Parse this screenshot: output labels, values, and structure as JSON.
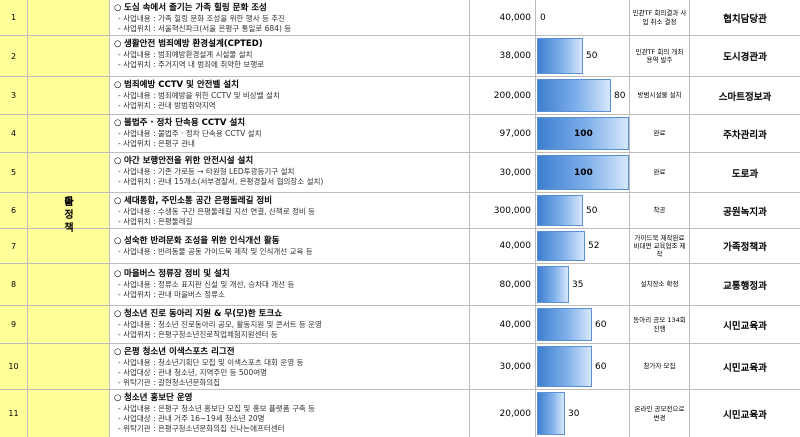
{
  "category": {
    "chars": [
      "마",
      "을",
      "정",
      "책"
    ]
  },
  "rows": [
    {
      "no": "1",
      "title": "도심 속에서 즐기는 가족 힐링 문화 조성",
      "lines": [
        "- 사업내용 : 가족 힐링 문화 조성을 위한 행사 등 추진",
        "- 사업위치 : 서울혁신파크(서울 은평구 통일로 684) 등"
      ],
      "budget": "40,000",
      "progress": 0,
      "progress_label": "0",
      "status": "민관TF 회의결과 사업 취소 결정",
      "dept": "협치담당관"
    },
    {
      "no": "2",
      "title": "생활안전 범죄예방 환경설계(CPTED)",
      "lines": [
        "- 사업내용 : 범죄예방환경설계 시설물 설치",
        "- 사업위치 : 주거지역 내 범죄에 취약한 보행로"
      ],
      "budget": "38,000",
      "progress": 50,
      "progress_label": "50",
      "status": "민관TF 회의 개최 용역 발주",
      "dept": "도시경관과"
    },
    {
      "no": "3",
      "title": "범죄예방 CCTV 및 안전벨 설치",
      "lines": [
        "- 사업내용 : 범죄예방을 위한 CCTV 및 비상벨 설치",
        "- 사업위치 : 관내 방범취약지역"
      ],
      "budget": "200,000",
      "progress": 80,
      "progress_label": "80",
      "status": "방범시설물 설치",
      "dept": "스마트정보과"
    },
    {
      "no": "4",
      "title": "불법주 · 정차 단속용 CCTV 설치",
      "lines": [
        "- 사업내용 : 불법주 · 정차 단속용 CCTV 설치",
        "- 사업위치 : 은평구 관내"
      ],
      "budget": "97,000",
      "progress": 100,
      "progress_label": "100",
      "status": "완료",
      "dept": "주차관리과"
    },
    {
      "no": "5",
      "title": "야간 보행안전을 위한 안전시설 설치",
      "lines": [
        "- 사업내용 : 기존 가로등 → 타원형 LED투광등기구 설치",
        "- 사업위치 : 관내 15개소(서부경찰서, 은평경찰서 협의장소 설치)"
      ],
      "budget": "30,000",
      "progress": 100,
      "progress_label": "100",
      "status": "완료",
      "dept": "도로과"
    },
    {
      "no": "6",
      "title": "세대통합, 주민소통 공간 은평둘레길 정비",
      "lines": [
        "- 사업내용 : 수생동 구간 은평둘레길 지선 연결, 산책로 정비 등",
        "- 사업위치 : 은평둘레길"
      ],
      "budget": "300,000",
      "progress": 50,
      "progress_label": "50",
      "status": "착공",
      "dept": "공원녹지과"
    },
    {
      "no": "7",
      "title": "성숙한 반려문화 조성을 위한 인식개선 활동",
      "lines": [
        "- 사업내용 : 반려동물 공동 가이드북 제작 및 인식개선 교육 등"
      ],
      "budget": "40,000",
      "progress": 52,
      "progress_label": "52",
      "status": "가이드북 제작완료 비대면 교육협조 제작",
      "dept": "가족정책과"
    },
    {
      "no": "8",
      "title": "마을버스 정류장 정비 및 설치",
      "lines": [
        "- 사업내용 : 정류소 표지판 신설 및 개선, 승차대 개선 등",
        "- 사업위치 : 관내 마을버스 정류소"
      ],
      "budget": "80,000",
      "progress": 35,
      "progress_label": "35",
      "status": "설치장소 확정",
      "dept": "교통행정과"
    },
    {
      "no": "9",
      "title": "청소년 진로 동아리 지원 & 무(모)한 토크쇼",
      "lines": [
        "- 사업내용 : 청소년 진로동아리 공모, 활동지원 및 콘서트 등 운영",
        "- 사업위치 : 은평구청소년진로직업체험지원센터 등"
      ],
      "budget": "40,000",
      "progress": 60,
      "progress_label": "60",
      "status": "동아리 공모 134회 진행",
      "dept": "시민교육과"
    },
    {
      "no": "10",
      "title": "은평 청소년 이색스포츠 리그전",
      "lines": [
        "- 사업내용 : 청소년기획단 모집 및 이색스포츠 대회 운영 등",
        "- 사업대상 : 관내 청소년, 지역주민 등 500여명",
        "- 위탁기관 : 갈현청소년문화의집"
      ],
      "budget": "30,000",
      "progress": 60,
      "progress_label": "60",
      "status": "참가자 모집",
      "dept": "시민교육과"
    },
    {
      "no": "11",
      "title": "청소년 홍보단 운영",
      "lines": [
        "- 사업내용 : 은평구 청소년 홍보단 모집 및 홍보 플랫폼 구축 등",
        "- 사업대상 : 관내 거주 16~19세 청소년 20명",
        "- 위탁기관 : 은평구청소년문화의집 신나는애프터센터"
      ],
      "budget": "20,000",
      "progress": 30,
      "progress_label": "30",
      "status": "온라인 공모전으로 변경",
      "dept": "시민교육과"
    }
  ]
}
